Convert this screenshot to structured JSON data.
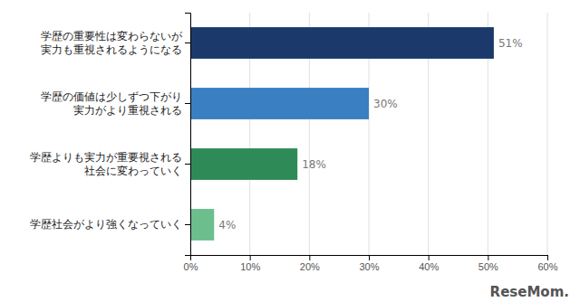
{
  "chart_data": {
    "type": "bar",
    "orientation": "horizontal",
    "categories": [
      "学歴社会がより強くなっていく",
      "学歴よりも実力が重要視される\n社会に変わっていく",
      "学歴の価値は少しずつ下がり\n実力がより重視される",
      "学歴の重要性は変わらないが\n実力も重視されるようになる"
    ],
    "values": [
      4,
      18,
      30,
      51
    ],
    "value_labels": [
      "4%",
      "18%",
      "30%",
      "51%"
    ],
    "colors": [
      "#6dbe8d",
      "#2e8b57",
      "#3a7fc1",
      "#1b3a6b"
    ],
    "data_labels": true,
    "xlim": [
      0,
      60
    ],
    "xticks": [
      {
        "value": 0,
        "label": "0%"
      },
      {
        "value": 10,
        "label": "10%"
      },
      {
        "value": 20,
        "label": "20%"
      },
      {
        "value": 30,
        "label": "30%"
      },
      {
        "value": 40,
        "label": "40%"
      },
      {
        "value": 50,
        "label": "50%"
      },
      {
        "value": 60,
        "label": "60%"
      }
    ],
    "grid": true,
    "annotations": [
      "ReseMom."
    ]
  }
}
